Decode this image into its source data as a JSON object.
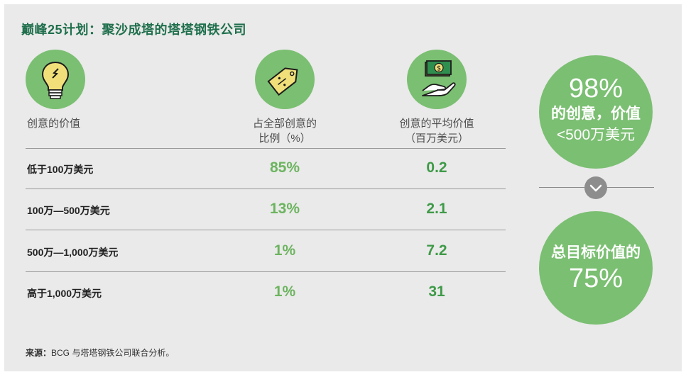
{
  "title": "巅峰25计划：聚沙成塔的塔塔钢铁公司",
  "columns": {
    "c1": "创意的价值",
    "c2_l1": "占全部创意的",
    "c2_l2": "比例（%）",
    "c3_l1": "创意的平均价值",
    "c3_l2": "（百万美元）"
  },
  "icons": [
    "lightbulb-icon",
    "price-tag-icon",
    "money-hand-icon"
  ],
  "chart_data": {
    "type": "table",
    "headers": [
      "创意的价值",
      "占全部创意的比例（%）",
      "创意的平均价值（百万美元）"
    ],
    "rows": [
      {
        "label": "低于100万美元",
        "pct": "85%",
        "avg": "0.2"
      },
      {
        "label": "100万—500万美元",
        "pct": "13%",
        "avg": "2.1"
      },
      {
        "label": "500万—1,000万美元",
        "pct": "1%",
        "avg": "7.2"
      },
      {
        "label": "高于1,000万美元",
        "pct": "1%",
        "avg": "31"
      }
    ]
  },
  "callout1": {
    "big": "98%",
    "line2": "的创意，价值",
    "line3": "<500万美元"
  },
  "callout2": {
    "line1": "总目标价值的",
    "big": "75%"
  },
  "source": {
    "label": "来源：",
    "text": "BCG 与塔塔钢铁公司联合分析。"
  },
  "colors": {
    "title": "#1f6f4c",
    "circle": "#7bbf72",
    "percent": "#6cb45f",
    "value": "#3f9a48",
    "panel": "#eaeaea"
  }
}
